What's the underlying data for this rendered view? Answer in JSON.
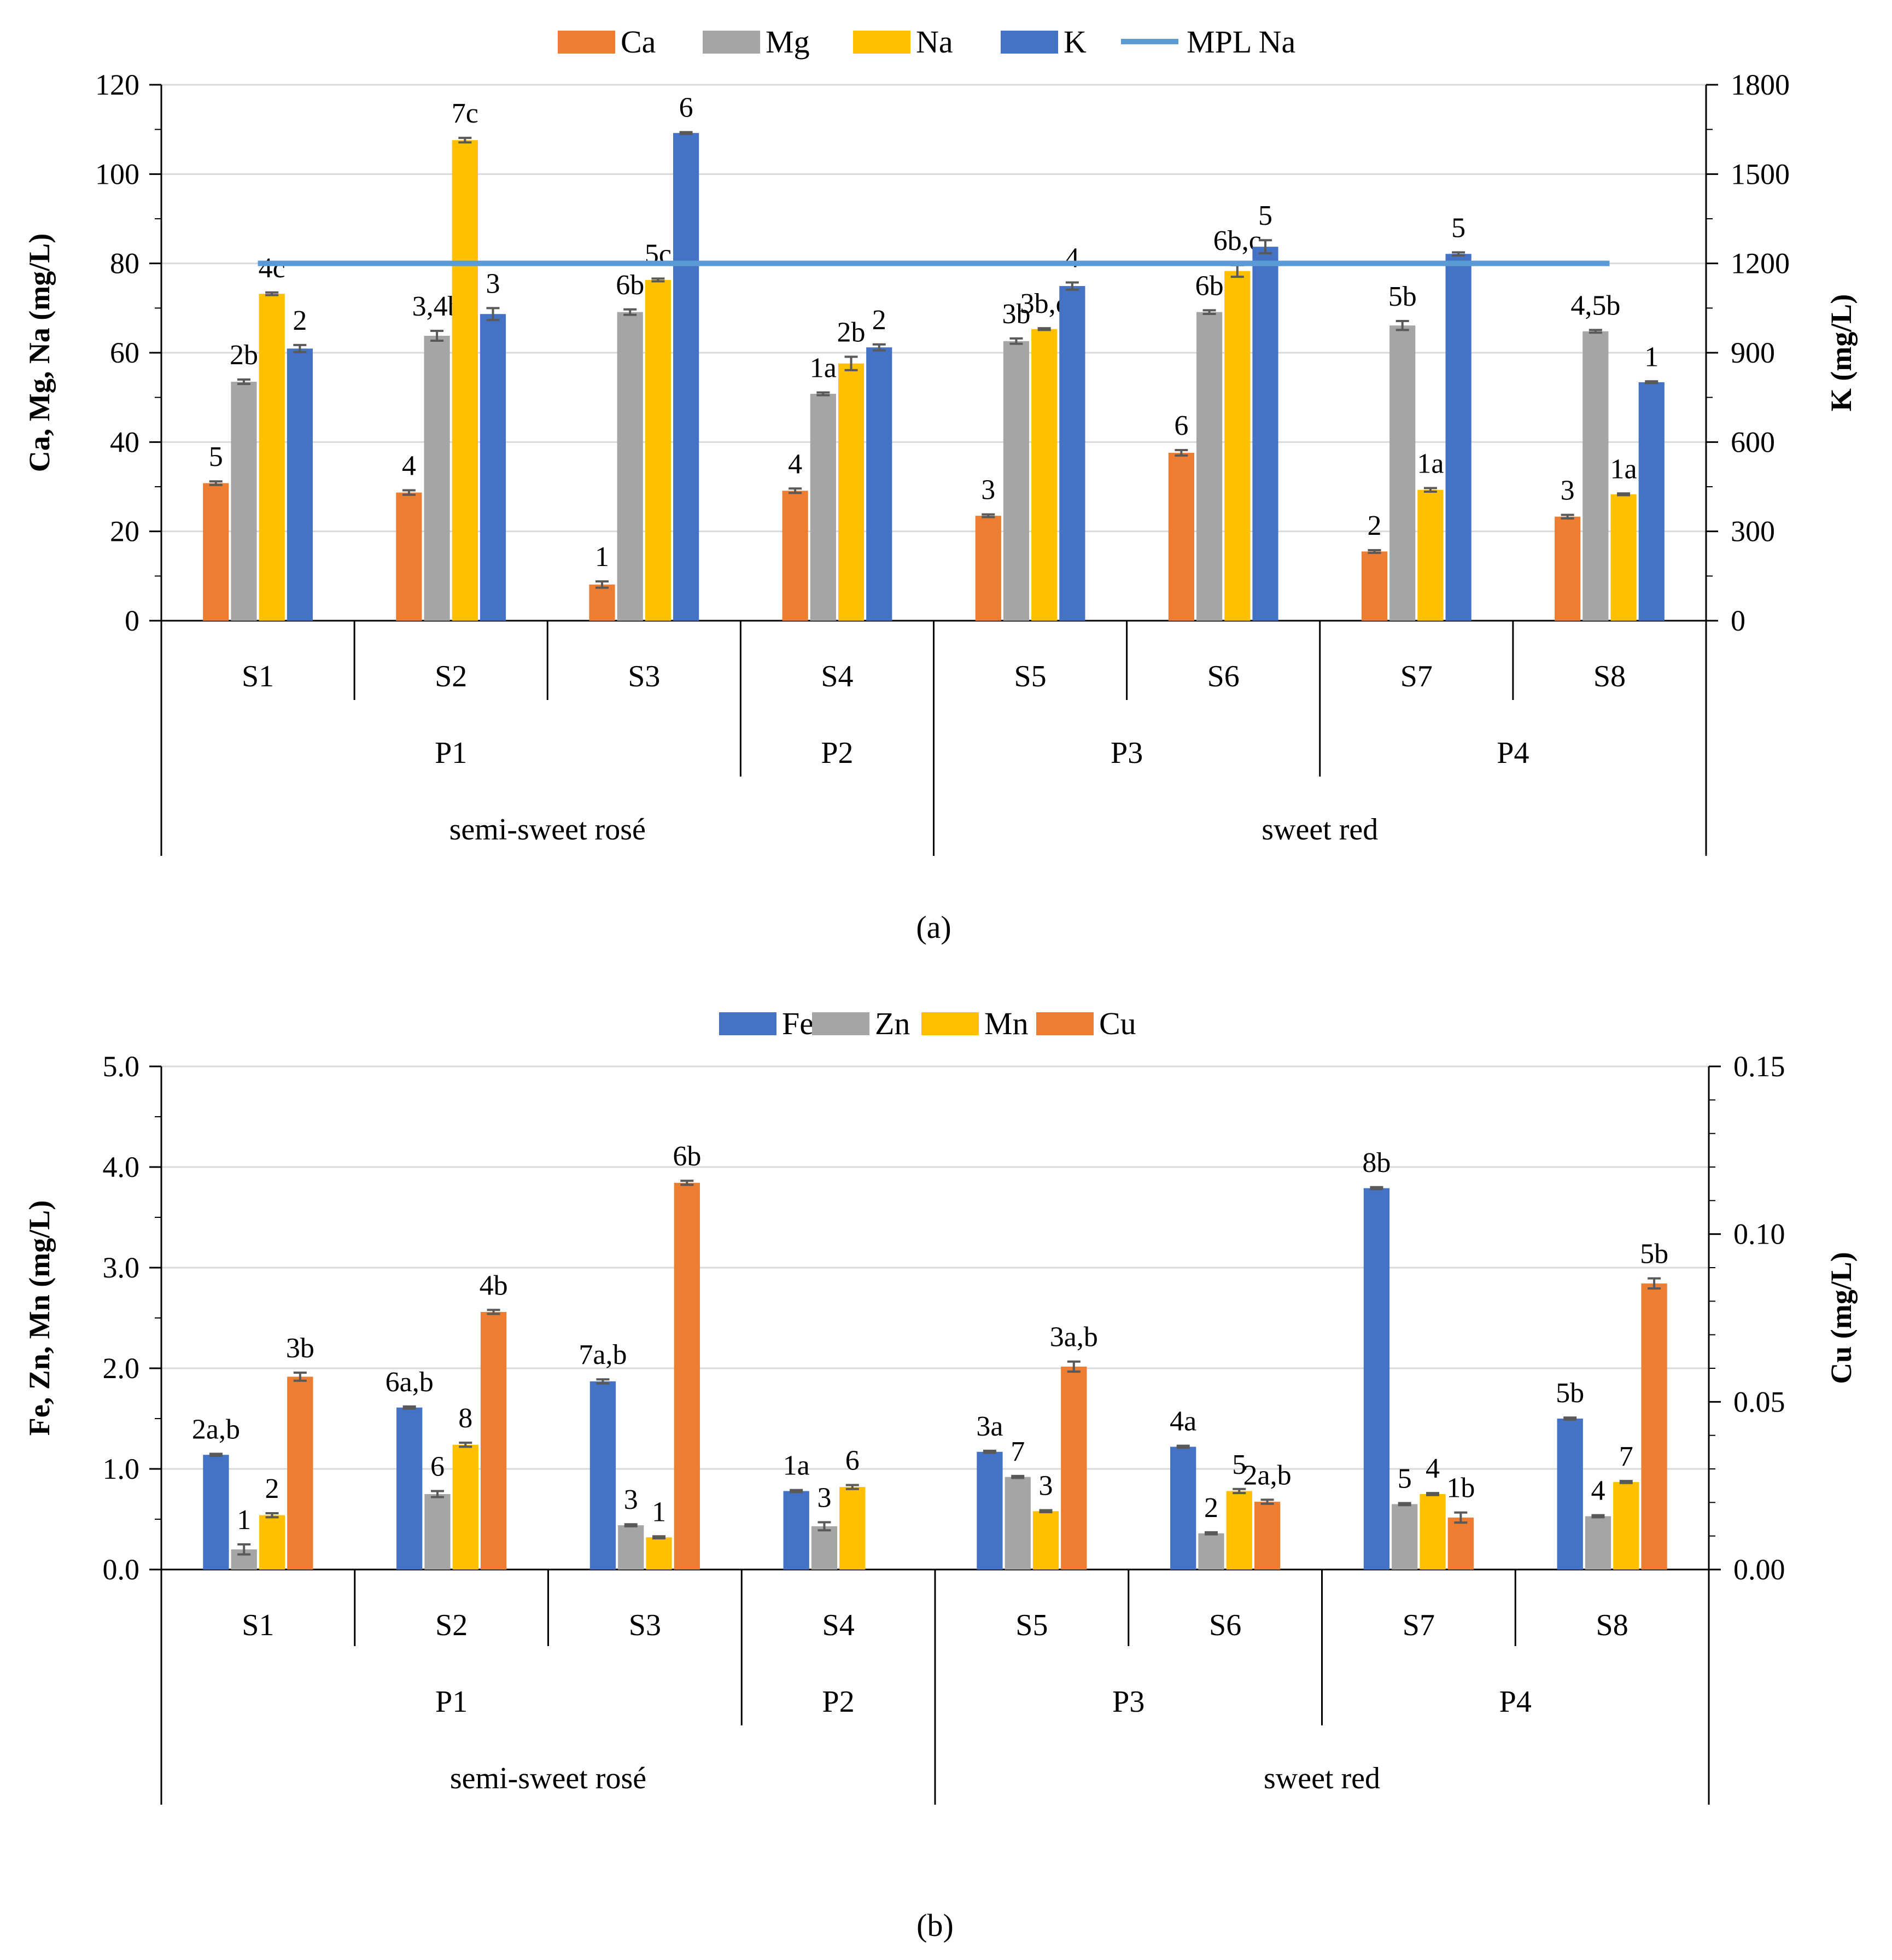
{
  "chart_data": [
    {
      "type": "bar",
      "panel_label": "(a)",
      "categories": [
        "S1",
        "S2",
        "S3",
        "S4",
        "S5",
        "S6",
        "S7",
        "S8"
      ],
      "producer_groups": [
        {
          "label": "P1",
          "span": [
            0,
            2
          ]
        },
        {
          "label": "P2",
          "span": [
            3,
            3
          ]
        },
        {
          "label": "P3",
          "span": [
            4,
            5
          ]
        },
        {
          "label": "P4",
          "span": [
            6,
            7
          ]
        }
      ],
      "type_groups": [
        {
          "label": "semi-sweet rosé",
          "span": [
            0,
            3
          ]
        },
        {
          "label": "sweet red",
          "span": [
            4,
            7
          ]
        }
      ],
      "y_left": {
        "label": "Ca, Mg, Na (mg/L)",
        "min": 0,
        "max": 120,
        "step": 20,
        "decimals": 0
      },
      "y_right": {
        "label": "K (mg/L)",
        "min": 0,
        "max": 1800,
        "step": 300,
        "decimals": 0
      },
      "series": [
        {
          "name": "Ca",
          "color": "#ED7D31",
          "axis": "left",
          "values": [
            30.8,
            28.7,
            8.1,
            29.1,
            23.5,
            37.6,
            15.5,
            23.3
          ],
          "errors": [
            0.4,
            0.5,
            0.7,
            0.5,
            0.3,
            0.6,
            0.3,
            0.4
          ],
          "labels": [
            "5",
            "4",
            "1",
            "4",
            "3",
            "6",
            "2",
            "3"
          ]
        },
        {
          "name": "Mg",
          "color": "#A5A5A5",
          "axis": "left",
          "values": [
            53.5,
            63.8,
            69.1,
            50.8,
            62.6,
            69.1,
            66.1,
            64.8
          ],
          "errors": [
            0.5,
            1.1,
            0.6,
            0.3,
            0.6,
            0.4,
            1.0,
            0.3
          ],
          "labels": [
            "2b",
            "3,4b",
            "6b",
            "1a",
            "3b",
            "6b",
            "5b",
            "4,5b"
          ]
        },
        {
          "name": "Na",
          "color": "#FFC000",
          "axis": "left",
          "values": [
            73.2,
            107.6,
            76.3,
            57.6,
            65.3,
            78.3,
            29.3,
            28.3
          ],
          "errors": [
            0.3,
            0.5,
            0.3,
            1.5,
            0.2,
            1.3,
            0.4,
            0.2
          ],
          "labels": [
            "4c",
            "7c",
            "5c",
            "2b",
            "3b,c",
            "6b,c",
            "1a",
            "1a"
          ]
        },
        {
          "name": "K",
          "color": "#4472C4",
          "axis": "right",
          "values": [
            914,
            1030,
            1638,
            918,
            1124,
            1256,
            1232,
            801
          ],
          "errors": [
            12,
            20,
            3,
            10,
            12,
            22,
            5,
            3
          ],
          "labels": [
            "2",
            "3",
            "6",
            "2",
            "4",
            "5",
            "5",
            "1"
          ]
        }
      ],
      "lines": [
        {
          "name": "MPL Na",
          "color": "#5B9BD5",
          "axis": "left",
          "value": 80
        }
      ]
    },
    {
      "type": "bar",
      "panel_label": "(b)",
      "categories": [
        "S1",
        "S2",
        "S3",
        "S4",
        "S5",
        "S6",
        "S7",
        "S8"
      ],
      "producer_groups": [
        {
          "label": "P1",
          "span": [
            0,
            2
          ]
        },
        {
          "label": "P2",
          "span": [
            3,
            3
          ]
        },
        {
          "label": "P3",
          "span": [
            4,
            5
          ]
        },
        {
          "label": "P4",
          "span": [
            6,
            7
          ]
        }
      ],
      "type_groups": [
        {
          "label": "semi-sweet rosé",
          "span": [
            0,
            3
          ]
        },
        {
          "label": "sweet red",
          "span": [
            4,
            7
          ]
        }
      ],
      "y_left": {
        "label": "Fe, Zn, Mn (mg/L)",
        "min": 0,
        "max": 5,
        "step": 1,
        "decimals": 1
      },
      "y_right": {
        "label": "Cu (mg/L)",
        "min": 0,
        "max": 0.15,
        "step": 0.05,
        "decimals": 2
      },
      "series": [
        {
          "name": "Fe",
          "color": "#4472C4",
          "axis": "left",
          "values": [
            1.14,
            1.61,
            1.87,
            0.78,
            1.17,
            1.22,
            3.79,
            1.5
          ],
          "errors": [
            0.01,
            0.01,
            0.02,
            0.01,
            0.01,
            0.01,
            0.01,
            0.01
          ],
          "labels": [
            "2a,b",
            "6a,b",
            "7a,b",
            "1a",
            "3a",
            "4a",
            "8b",
            "5b"
          ]
        },
        {
          "name": "Zn",
          "color": "#A5A5A5",
          "axis": "left",
          "values": [
            0.2,
            0.75,
            0.44,
            0.43,
            0.92,
            0.36,
            0.65,
            0.53
          ],
          "errors": [
            0.05,
            0.03,
            0.01,
            0.04,
            0.01,
            0.01,
            0.01,
            0.01
          ],
          "labels": [
            "1",
            "6",
            "3",
            "3",
            "7",
            "2",
            "5",
            "4"
          ]
        },
        {
          "name": "Mn",
          "color": "#FFC000",
          "axis": "left",
          "values": [
            0.54,
            1.24,
            0.32,
            0.82,
            0.58,
            0.78,
            0.75,
            0.87
          ],
          "errors": [
            0.02,
            0.02,
            0.01,
            0.02,
            0.01,
            0.02,
            0.01,
            0.01
          ],
          "labels": [
            "2",
            "8",
            "1",
            "6",
            "3",
            "5",
            "4",
            "7"
          ]
        },
        {
          "name": "Cu",
          "color": "#ED7D31",
          "axis": "right",
          "values": [
            0.0575,
            0.0768,
            0.1153,
            null,
            0.0605,
            0.0202,
            0.0155,
            0.0853
          ],
          "errors": [
            0.0012,
            0.0006,
            0.0006,
            null,
            0.0015,
            0.0006,
            0.0015,
            0.0015
          ],
          "labels": [
            "3b",
            "4b",
            "6b",
            "",
            "3a,b",
            "2a,b",
            "1b",
            "5b"
          ]
        }
      ],
      "lines": []
    }
  ]
}
